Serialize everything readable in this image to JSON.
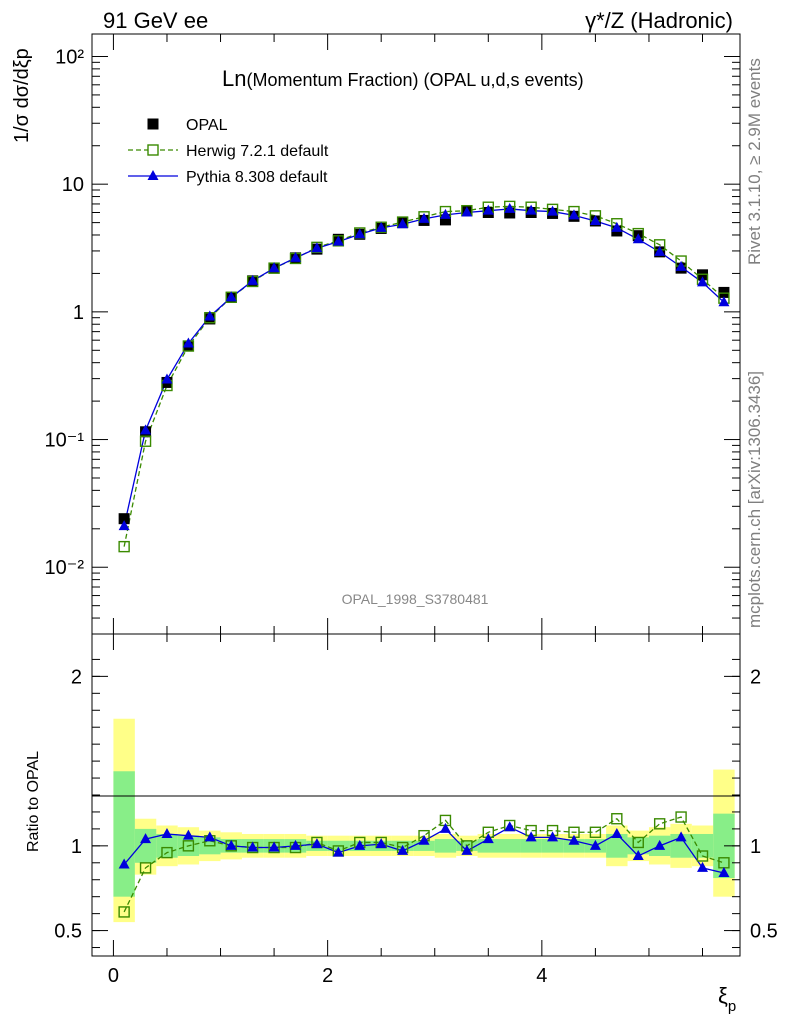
{
  "header": {
    "left": "91 GeV ee",
    "right": "γ*/Z (Hadronic)"
  },
  "side_labels": {
    "rivet": "Rivet 3.1.10, ≥ 2.9M events",
    "mcplots": "mcplots.cern.ch [arXiv:1306.3436]"
  },
  "watermark": "OPAL_1998_S3780481",
  "colors": {
    "data": "#000000",
    "herwig": "#3a8a00",
    "pythia": "#0000dd",
    "band_outer": "#ffff88",
    "band_inner": "#88ee88"
  },
  "chart_data": [
    {
      "type": "scatter",
      "title": "Ln(Momentum Fraction) (OPAL u,d,s events)",
      "ylabel": "1/σ dσ/dξp",
      "yscale": "log",
      "xlim": [
        -0.2,
        5.85
      ],
      "ylim": [
        0.003,
        150
      ],
      "y_tick_labels": [
        "10⁻²",
        "10⁻¹",
        "1",
        "10",
        "10²"
      ],
      "legend": [
        "OPAL",
        "Herwig 7.2.1 default",
        "Pythia 8.308 default"
      ],
      "legend_position": "top-left",
      "x": [
        0.1,
        0.3,
        0.5,
        0.7,
        0.9,
        1.1,
        1.3,
        1.5,
        1.7,
        1.9,
        2.1,
        2.3,
        2.5,
        2.7,
        2.9,
        3.1,
        3.3,
        3.5,
        3.7,
        3.9,
        4.1,
        4.3,
        4.5,
        4.7,
        4.9,
        5.1,
        5.3,
        5.5,
        5.7
      ],
      "series": [
        {
          "name": "OPAL",
          "values": [
            0.024,
            0.115,
            0.28,
            0.54,
            0.88,
            1.3,
            1.75,
            2.2,
            2.65,
            3.1,
            3.7,
            4.05,
            4.5,
            5.0,
            5.2,
            5.25,
            6.2,
            6.0,
            5.95,
            6.0,
            5.9,
            5.6,
            5.15,
            4.3,
            3.95,
            2.95,
            2.2,
            1.95,
            1.42
          ]
        },
        {
          "name": "Herwig 7.2.1 default",
          "values": [
            0.0145,
            0.097,
            0.265,
            0.54,
            0.9,
            1.3,
            1.73,
            2.2,
            2.62,
            3.2,
            3.6,
            4.15,
            4.6,
            5.05,
            5.55,
            6.1,
            6.2,
            6.6,
            6.7,
            6.6,
            6.35,
            6.1,
            5.65,
            4.9,
            4.1,
            3.35,
            2.5,
            1.8,
            1.28
          ]
        },
        {
          "name": "Pythia 8.308 default",
          "values": [
            0.021,
            0.118,
            0.295,
            0.565,
            0.92,
            1.3,
            1.75,
            2.2,
            2.65,
            3.15,
            3.55,
            4.05,
            4.55,
            4.85,
            5.35,
            5.75,
            6.0,
            6.2,
            6.4,
            6.2,
            6.1,
            5.7,
            5.15,
            4.55,
            3.7,
            2.95,
            2.25,
            1.7,
            1.19
          ]
        }
      ]
    },
    {
      "type": "line",
      "ylabel": "Ratio to OPAL",
      "xlabel": "ξp",
      "xlim": [
        -0.2,
        5.85
      ],
      "ylim": [
        0.35,
        2.25
      ],
      "x_ticks": [
        0,
        2,
        4
      ],
      "y_ticks": [
        0.5,
        1,
        2
      ],
      "x": [
        0.1,
        0.3,
        0.5,
        0.7,
        0.9,
        1.1,
        1.3,
        1.5,
        1.7,
        1.9,
        2.1,
        2.3,
        2.5,
        2.7,
        2.9,
        3.1,
        3.3,
        3.5,
        3.7,
        3.9,
        4.1,
        4.3,
        4.5,
        4.7,
        4.9,
        5.1,
        5.3,
        5.5,
        5.7
      ],
      "band_yellow": [
        0.55,
        0.83,
        0.88,
        0.89,
        0.91,
        0.92,
        0.93,
        0.93,
        0.93,
        0.94,
        0.94,
        0.94,
        0.94,
        0.94,
        0.94,
        0.93,
        0.94,
        0.93,
        0.93,
        0.93,
        0.93,
        0.93,
        0.93,
        0.88,
        0.91,
        0.89,
        0.87,
        0.88,
        0.7
      ],
      "band_yellow_hi": [
        1.75,
        1.16,
        1.12,
        1.11,
        1.09,
        1.08,
        1.07,
        1.07,
        1.07,
        1.06,
        1.06,
        1.06,
        1.06,
        1.06,
        1.06,
        1.07,
        1.06,
        1.07,
        1.07,
        1.07,
        1.07,
        1.07,
        1.07,
        1.12,
        1.09,
        1.11,
        1.13,
        1.12,
        1.45
      ],
      "band_green": [
        0.7,
        0.9,
        0.93,
        0.94,
        0.95,
        0.96,
        0.96,
        0.96,
        0.96,
        0.97,
        0.97,
        0.97,
        0.97,
        0.97,
        0.97,
        0.96,
        0.97,
        0.96,
        0.96,
        0.96,
        0.96,
        0.96,
        0.96,
        0.93,
        0.95,
        0.94,
        0.93,
        0.93,
        0.81
      ],
      "band_green_hi": [
        1.44,
        1.1,
        1.07,
        1.06,
        1.05,
        1.04,
        1.04,
        1.04,
        1.04,
        1.03,
        1.03,
        1.03,
        1.03,
        1.03,
        1.03,
        1.04,
        1.03,
        1.04,
        1.04,
        1.04,
        1.04,
        1.04,
        1.04,
        1.07,
        1.05,
        1.06,
        1.07,
        1.07,
        1.19
      ],
      "series": [
        {
          "name": "Herwig 7.2.1 default",
          "values": [
            0.61,
            0.87,
            0.96,
            1.0,
            1.03,
            1.0,
            0.99,
            0.99,
            0.99,
            1.02,
            0.97,
            1.02,
            1.02,
            0.99,
            1.06,
            1.15,
            1.0,
            1.08,
            1.12,
            1.09,
            1.09,
            1.08,
            1.08,
            1.16,
            1.02,
            1.13,
            1.17,
            0.94,
            0.9
          ]
        },
        {
          "name": "Pythia 8.308 default",
          "values": [
            0.89,
            1.04,
            1.07,
            1.06,
            1.05,
            1.0,
            0.99,
            0.99,
            1.0,
            1.01,
            0.96,
            1.0,
            1.01,
            0.97,
            1.03,
            1.1,
            0.97,
            1.04,
            1.11,
            1.05,
            1.05,
            1.03,
            1.0,
            1.07,
            0.94,
            1.0,
            1.05,
            0.87,
            0.84
          ]
        }
      ]
    }
  ]
}
